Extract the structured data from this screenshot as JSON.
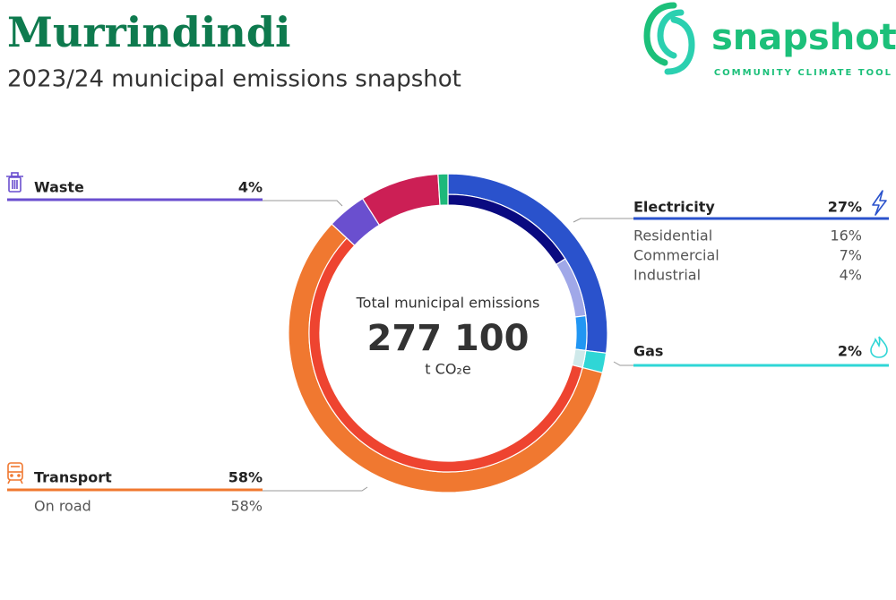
{
  "logo": {
    "name": "snapshot",
    "tagline": "COMMUNITY CLIMATE TOOL"
  },
  "chart_data": {
    "type": "donut",
    "title": "Murrindindi",
    "subtitle": "2023/24 municipal emissions snapshot",
    "center": {
      "label": "Total municipal emissions",
      "value": 277100,
      "value_label": "277 100",
      "unit": "t CO₂e"
    },
    "categories": [
      "Electricity",
      "Gas",
      "Transport",
      "Waste",
      null,
      null
    ],
    "values": [
      27,
      2,
      58,
      4,
      8,
      1
    ],
    "value_labels": [
      "27%",
      "2%",
      "58%",
      "4%",
      null,
      null
    ],
    "colors": [
      "#2a52cc",
      "#2fd6d6",
      "#f07830",
      "#6a4fcf",
      "#cc1f55",
      "#1db87a"
    ],
    "breakdown": [
      {
        "categories": [
          "Residential",
          "Commercial",
          "Industrial"
        ],
        "values": [
          16,
          7,
          4
        ],
        "value_labels": [
          "16%",
          "7%",
          "4%"
        ],
        "colors": [
          "#0a0a80",
          "#a0a8e8",
          "#2196f3"
        ]
      },
      {
        "categories": [
          null
        ],
        "values": [
          2
        ],
        "value_labels": [
          null
        ],
        "colors": [
          "#cfe9ea"
        ]
      },
      {
        "categories": [
          "On road"
        ],
        "values": [
          58
        ],
        "value_labels": [
          "58%"
        ],
        "colors": [
          "#ee4430"
        ]
      },
      null,
      null,
      null
    ]
  }
}
